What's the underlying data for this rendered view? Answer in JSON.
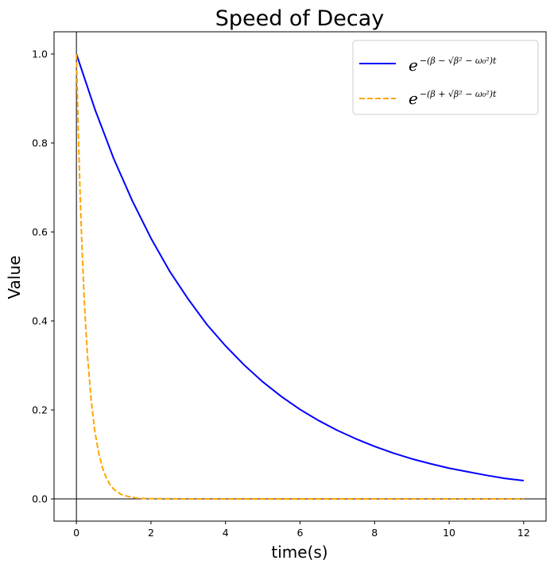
{
  "chart_data": {
    "type": "line",
    "title": "Speed of Decay",
    "xlabel": "time(s)",
    "ylabel": "Value",
    "xlim": [
      -0.6,
      12.6
    ],
    "ylim": [
      -0.05,
      1.05
    ],
    "x_ticks": [
      0,
      2,
      4,
      6,
      8,
      10,
      12
    ],
    "y_ticks": [
      0.0,
      0.2,
      0.4,
      0.6,
      0.8,
      1.0
    ],
    "x_tick_labels": [
      "0",
      "2",
      "4",
      "6",
      "8",
      "10",
      "12"
    ],
    "y_tick_labels": [
      "0.0",
      "0.2",
      "0.4",
      "0.6",
      "0.8",
      "1.0"
    ],
    "grid": false,
    "legend_position": "top-right",
    "reference_lines": {
      "x": 0,
      "y": 0
    },
    "series": [
      {
        "name": "e^{-(β - √(β² - ω₀²))t}",
        "legend_base": "e",
        "legend_exponent": "−(β − √β² − ω₀²)t",
        "color": "#0000ff",
        "dash": "solid",
        "x": [
          0,
          0.5,
          1,
          1.5,
          2,
          2.5,
          3,
          3.5,
          4,
          4.5,
          5,
          5.5,
          6,
          6.5,
          7,
          7.5,
          8,
          8.5,
          9,
          9.5,
          10,
          10.5,
          11,
          11.5,
          12
        ],
        "values": [
          1.0,
          0.875,
          0.765,
          0.67,
          0.586,
          0.512,
          0.449,
          0.392,
          0.344,
          0.301,
          0.263,
          0.23,
          0.201,
          0.176,
          0.154,
          0.135,
          0.118,
          0.103,
          0.09,
          0.079,
          0.069,
          0.061,
          0.053,
          0.046,
          0.041
        ]
      },
      {
        "name": "e^{-(β + √(β² - ω₀²))t}",
        "legend_base": "e",
        "legend_exponent": "−(β + √β² − ω₀²)t",
        "color": "#ffa500",
        "dash": "dashed",
        "x": [
          0,
          0.05,
          0.1,
          0.15,
          0.2,
          0.25,
          0.3,
          0.4,
          0.5,
          0.6,
          0.7,
          0.8,
          0.9,
          1.0,
          1.2,
          1.4,
          1.6,
          1.8,
          2.0,
          3,
          4,
          6,
          8,
          10,
          12
        ],
        "values": [
          1.0,
          0.827,
          0.683,
          0.565,
          0.467,
          0.386,
          0.319,
          0.218,
          0.149,
          0.102,
          0.07,
          0.048,
          0.032,
          0.022,
          0.01,
          0.005,
          0.002,
          0.001,
          0.0005,
          0.0,
          0.0,
          0.0,
          0.0,
          0.0,
          0.0
        ]
      }
    ]
  }
}
